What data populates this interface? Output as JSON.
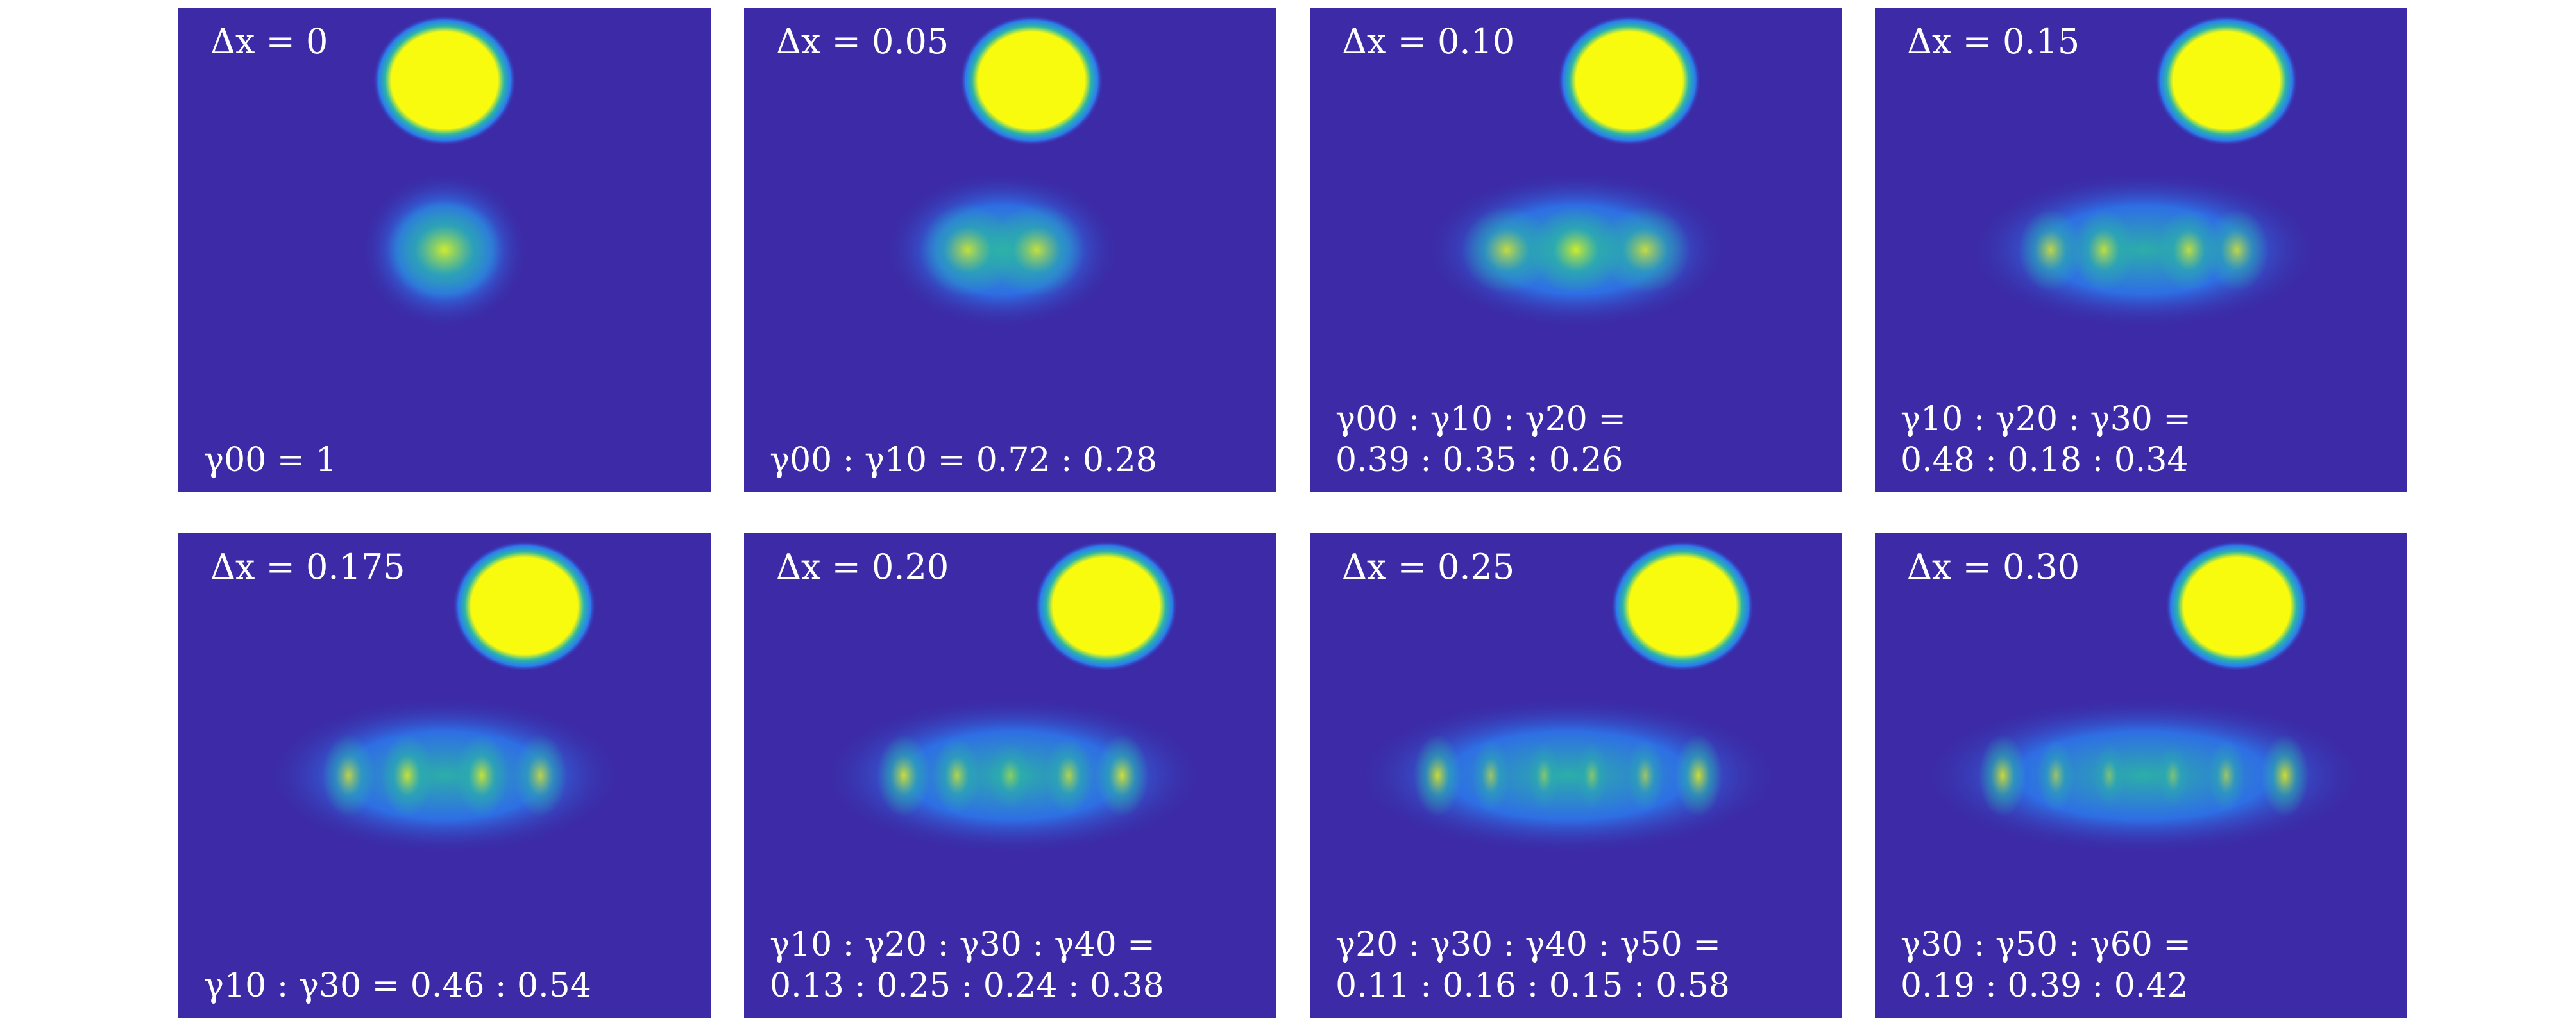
{
  "colors": {
    "background": "#3c2aa6",
    "peak": "#f9fb0e",
    "mid": "#2bb5a8",
    "edge": "#2c7bf0"
  },
  "panels": [
    {
      "shift": "Δx = 0",
      "reference_x": 0.5,
      "modes": [
        {
          "x": 0.5,
          "w": 0.11,
          "h": 0.105,
          "a": 0.8
        }
      ],
      "weights": [
        "γ00 = 1"
      ]
    },
    {
      "shift": "Δx = 0.05",
      "reference_x": 0.54,
      "modes": [
        {
          "x": 0.42,
          "w": 0.09,
          "h": 0.095,
          "a": 0.75
        },
        {
          "x": 0.55,
          "w": 0.09,
          "h": 0.095,
          "a": 0.75
        }
      ],
      "weights": [
        "γ00 : γ10 = 0.72 : 0.28"
      ]
    },
    {
      "shift": "Δx = 0.10",
      "reference_x": 0.6,
      "modes": [
        {
          "x": 0.37,
          "w": 0.085,
          "h": 0.09,
          "a": 0.75
        },
        {
          "x": 0.5,
          "w": 0.085,
          "h": 0.09,
          "a": 0.8
        },
        {
          "x": 0.63,
          "w": 0.085,
          "h": 0.09,
          "a": 0.75
        }
      ],
      "weights": [
        "γ00 : γ10 : γ20 =",
        "0.39 : 0.35 : 0.26"
      ]
    },
    {
      "shift": "Δx = 0.15",
      "reference_x": 0.66,
      "modes": [
        {
          "x": 0.33,
          "w": 0.06,
          "h": 0.085,
          "a": 0.72
        },
        {
          "x": 0.43,
          "w": 0.06,
          "h": 0.085,
          "a": 0.72
        },
        {
          "x": 0.59,
          "w": 0.06,
          "h": 0.085,
          "a": 0.72
        },
        {
          "x": 0.68,
          "w": 0.06,
          "h": 0.085,
          "a": 0.72
        }
      ],
      "weights": [
        "γ10 : γ20 : γ30 =",
        "0.48 : 0.18 : 0.34"
      ]
    },
    {
      "shift": "Δx = 0.175",
      "reference_x": 0.65,
      "modes": [
        {
          "x": 0.32,
          "w": 0.05,
          "h": 0.085,
          "a": 0.7
        },
        {
          "x": 0.43,
          "w": 0.05,
          "h": 0.085,
          "a": 0.75
        },
        {
          "x": 0.57,
          "w": 0.05,
          "h": 0.085,
          "a": 0.75
        },
        {
          "x": 0.68,
          "w": 0.05,
          "h": 0.085,
          "a": 0.7
        }
      ],
      "weights": [
        "γ10 : γ30 = 0.46 : 0.54"
      ]
    },
    {
      "shift": "Δx = 0.20",
      "reference_x": 0.68,
      "modes": [
        {
          "x": 0.3,
          "w": 0.05,
          "h": 0.085,
          "a": 0.78
        },
        {
          "x": 0.4,
          "w": 0.045,
          "h": 0.08,
          "a": 0.65
        },
        {
          "x": 0.5,
          "w": 0.04,
          "h": 0.07,
          "a": 0.45
        },
        {
          "x": 0.61,
          "w": 0.045,
          "h": 0.08,
          "a": 0.65
        },
        {
          "x": 0.71,
          "w": 0.05,
          "h": 0.085,
          "a": 0.8
        }
      ],
      "weights": [
        "γ10 : γ20 : γ30 : γ40 =",
        "0.13 : 0.25 : 0.24 : 0.38"
      ]
    },
    {
      "shift": "Δx = 0.25",
      "reference_x": 0.7,
      "modes": [
        {
          "x": 0.24,
          "w": 0.045,
          "h": 0.085,
          "a": 0.78
        },
        {
          "x": 0.34,
          "w": 0.035,
          "h": 0.075,
          "a": 0.55
        },
        {
          "x": 0.44,
          "w": 0.03,
          "h": 0.07,
          "a": 0.42
        },
        {
          "x": 0.53,
          "w": 0.03,
          "h": 0.07,
          "a": 0.42
        },
        {
          "x": 0.63,
          "w": 0.035,
          "h": 0.075,
          "a": 0.55
        },
        {
          "x": 0.73,
          "w": 0.045,
          "h": 0.085,
          "a": 0.8
        }
      ],
      "weights": [
        "γ20 : γ30 : γ40 : γ50 =",
        "0.11 : 0.16 : 0.15 : 0.58"
      ]
    },
    {
      "shift": "Δx = 0.30",
      "reference_x": 0.68,
      "modes": [
        {
          "x": 0.24,
          "w": 0.045,
          "h": 0.085,
          "a": 0.78
        },
        {
          "x": 0.34,
          "w": 0.035,
          "h": 0.075,
          "a": 0.55
        },
        {
          "x": 0.44,
          "w": 0.03,
          "h": 0.065,
          "a": 0.4
        },
        {
          "x": 0.56,
          "w": 0.03,
          "h": 0.065,
          "a": 0.4
        },
        {
          "x": 0.66,
          "w": 0.035,
          "h": 0.075,
          "a": 0.55
        },
        {
          "x": 0.77,
          "w": 0.045,
          "h": 0.085,
          "a": 0.8
        }
      ],
      "weights": [
        "γ30 : γ50 : γ60 =",
        "0.19 : 0.39 : 0.42"
      ]
    }
  ]
}
